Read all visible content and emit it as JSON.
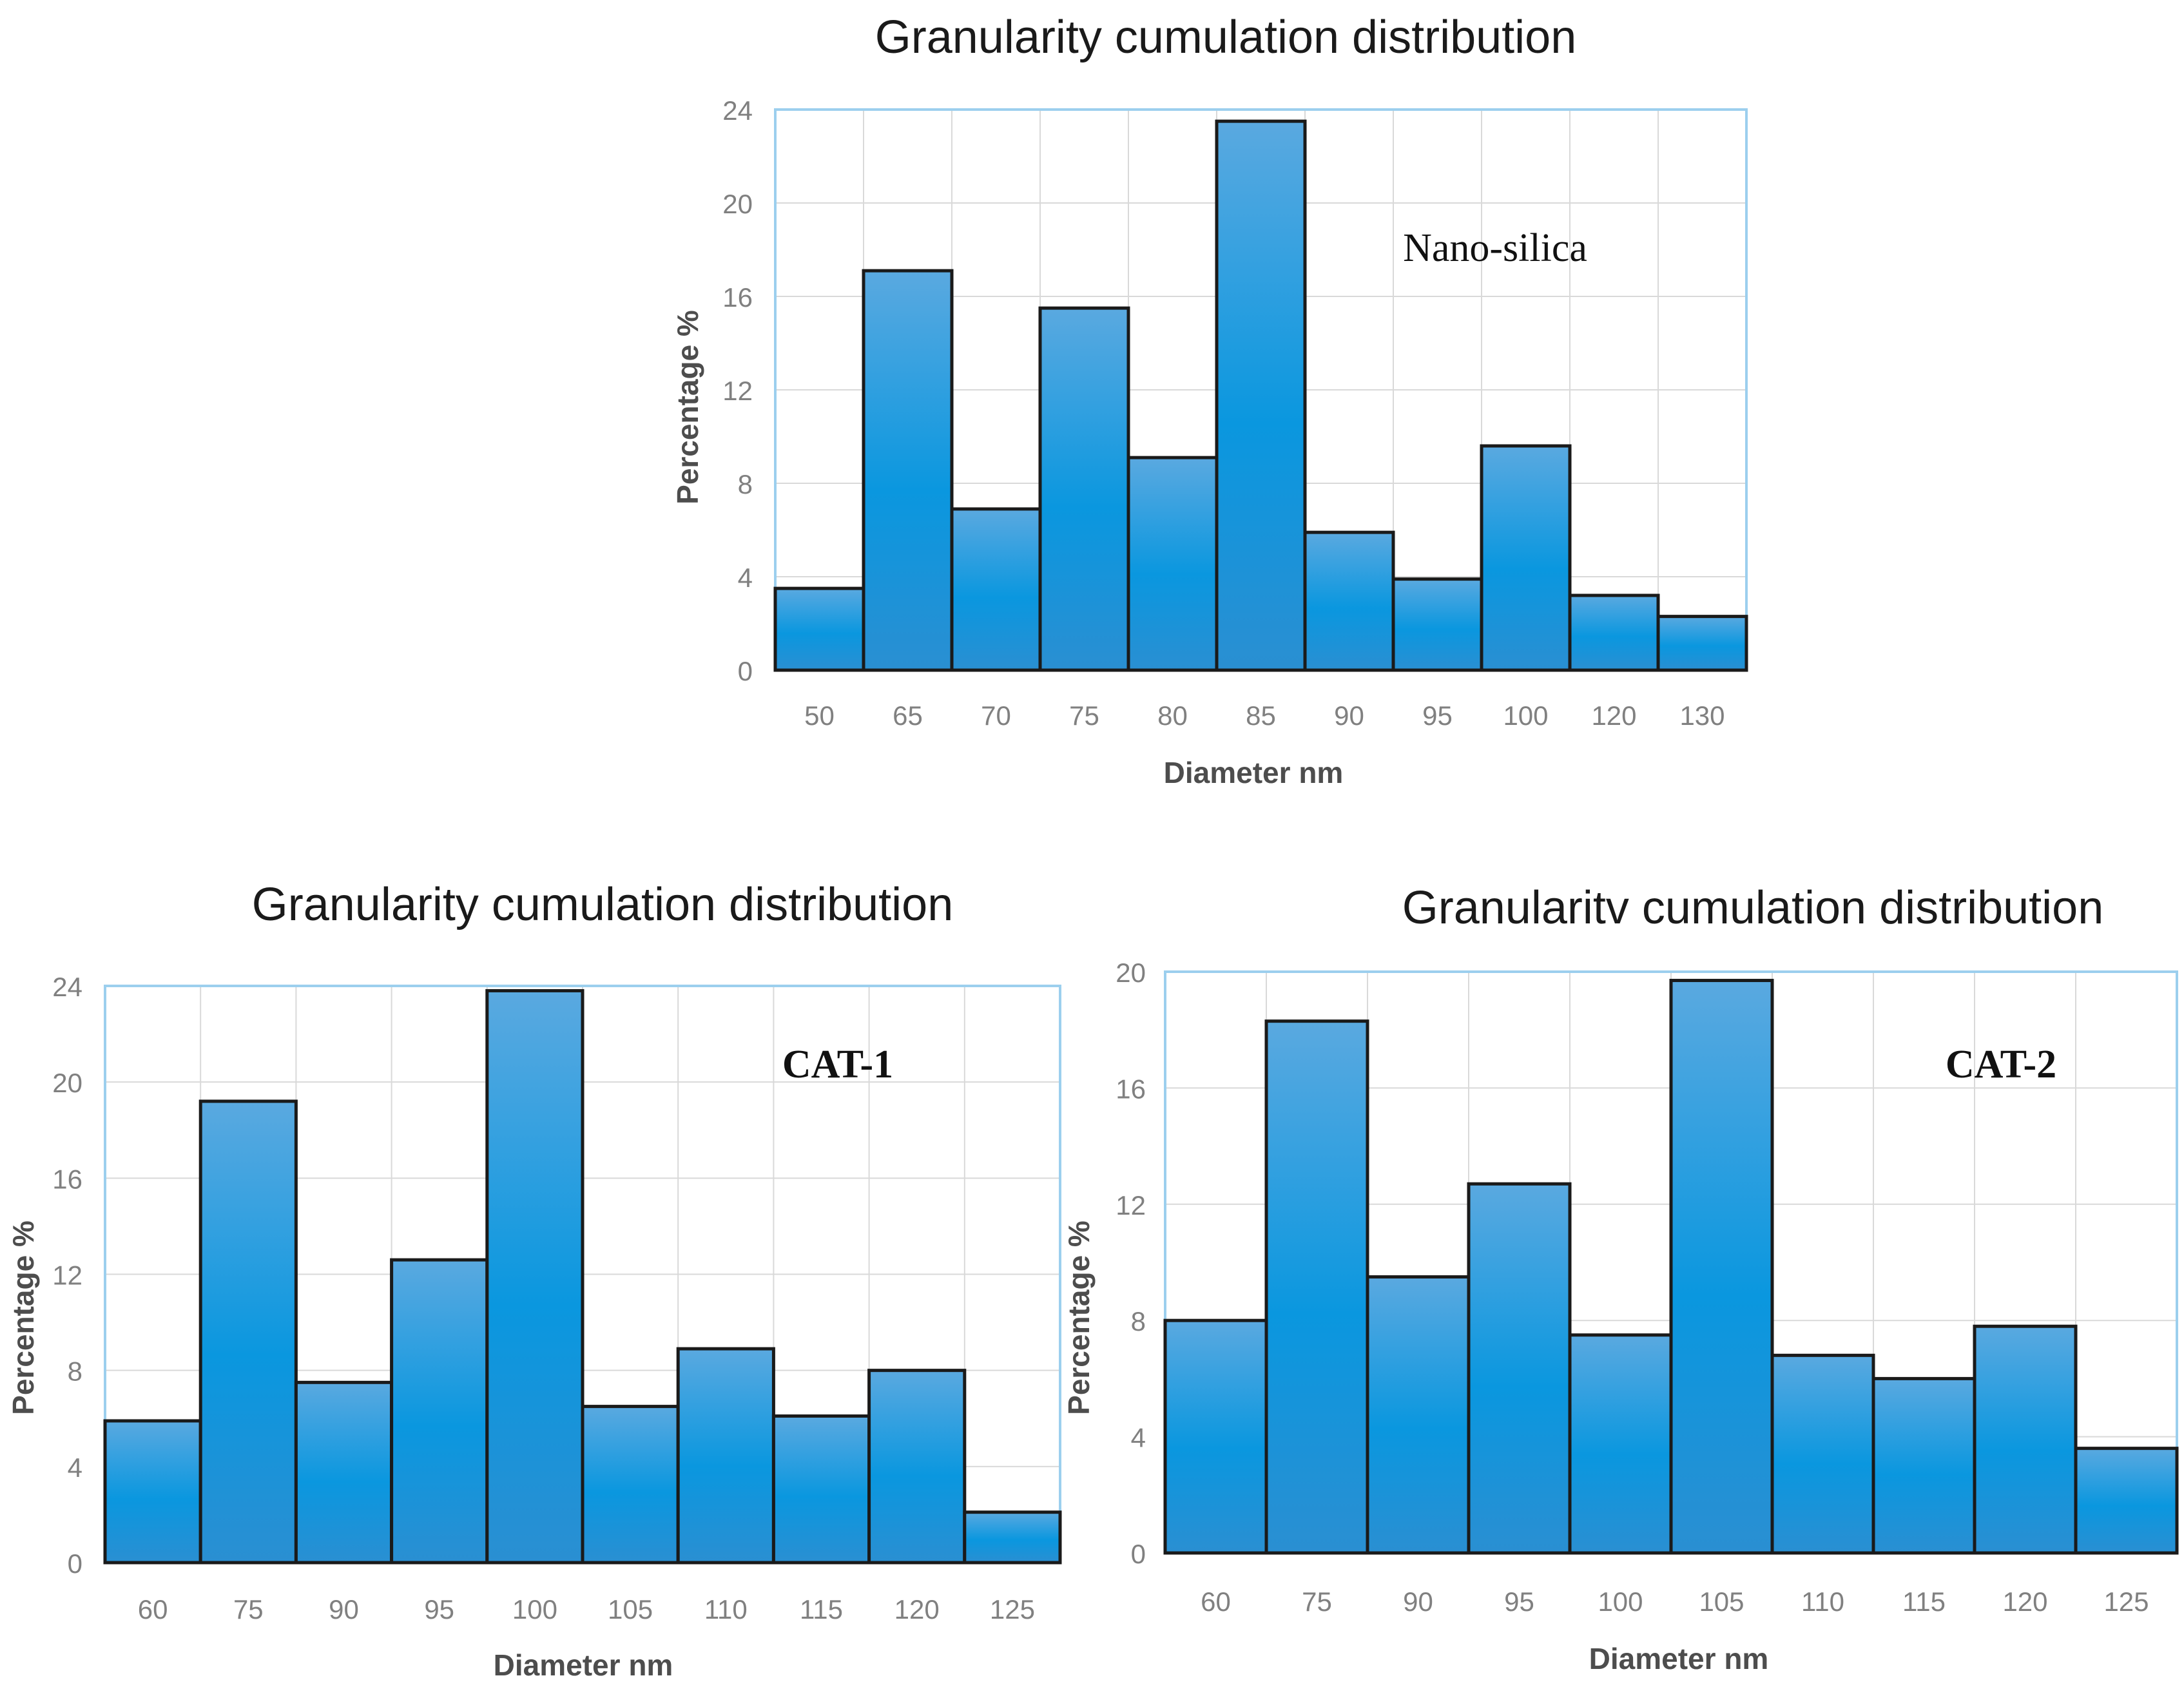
{
  "chart_data": [
    {
      "type": "bar",
      "title": "Granularity cumulation distribution",
      "annotation": "Nano-silica",
      "xlabel": "Diameter nm",
      "ylabel": "Percentage %",
      "categories": [
        "50",
        "65",
        "70",
        "75",
        "80",
        "85",
        "90",
        "95",
        "100",
        "120",
        "130"
      ],
      "values": [
        3.5,
        17.1,
        6.9,
        15.5,
        9.1,
        23.5,
        5.9,
        3.9,
        9.6,
        3.2,
        2.3
      ],
      "ylim": [
        0,
        24
      ],
      "yticks": [
        0,
        4,
        8,
        12,
        16,
        20,
        24
      ],
      "grid": true,
      "colors": {
        "bar_top": "#5aa9e0",
        "bar_mid": "#0a97df",
        "bar_bottom": "#2a8fd2",
        "stroke": "#1a1a1a",
        "frame": "#9ccfee",
        "grid": "#d9d9d9"
      }
    },
    {
      "type": "bar",
      "title": "Granularity cumulation distribution",
      "annotation": "CAT-1",
      "xlabel": "Diameter nm",
      "ylabel": "Percentage %",
      "categories": [
        "60",
        "75",
        "90",
        "95",
        "100",
        "105",
        "110",
        "115",
        "120",
        "125"
      ],
      "values": [
        5.9,
        19.2,
        7.5,
        12.6,
        23.8,
        6.5,
        8.9,
        6.1,
        8.0,
        2.1
      ],
      "ylim": [
        0,
        24
      ],
      "yticks": [
        0,
        4,
        8,
        12,
        16,
        20,
        24
      ],
      "grid": true,
      "colors": {
        "bar_top": "#5aa9e0",
        "bar_mid": "#0a97df",
        "bar_bottom": "#2a8fd2",
        "stroke": "#1a1a1a",
        "frame": "#9ccfee",
        "grid": "#d9d9d9"
      }
    },
    {
      "type": "bar",
      "title": "Granularitv cumulation distribution",
      "annotation": "CAT-2",
      "xlabel": "Diameter nm",
      "ylabel": "Percentage %",
      "categories": [
        "60",
        "75",
        "90",
        "95",
        "100",
        "105",
        "110",
        "115",
        "120",
        "125"
      ],
      "values": [
        8.0,
        18.3,
        9.5,
        12.7,
        7.5,
        19.7,
        6.8,
        6.0,
        7.8,
        3.6
      ],
      "ylim": [
        0,
        20
      ],
      "yticks": [
        0,
        4,
        8,
        12,
        16,
        20
      ],
      "grid": true,
      "colors": {
        "bar_top": "#5aa9e0",
        "bar_mid": "#0a97df",
        "bar_bottom": "#2a8fd2",
        "stroke": "#1a1a1a",
        "frame": "#9ccfee",
        "grid": "#d9d9d9"
      }
    }
  ]
}
